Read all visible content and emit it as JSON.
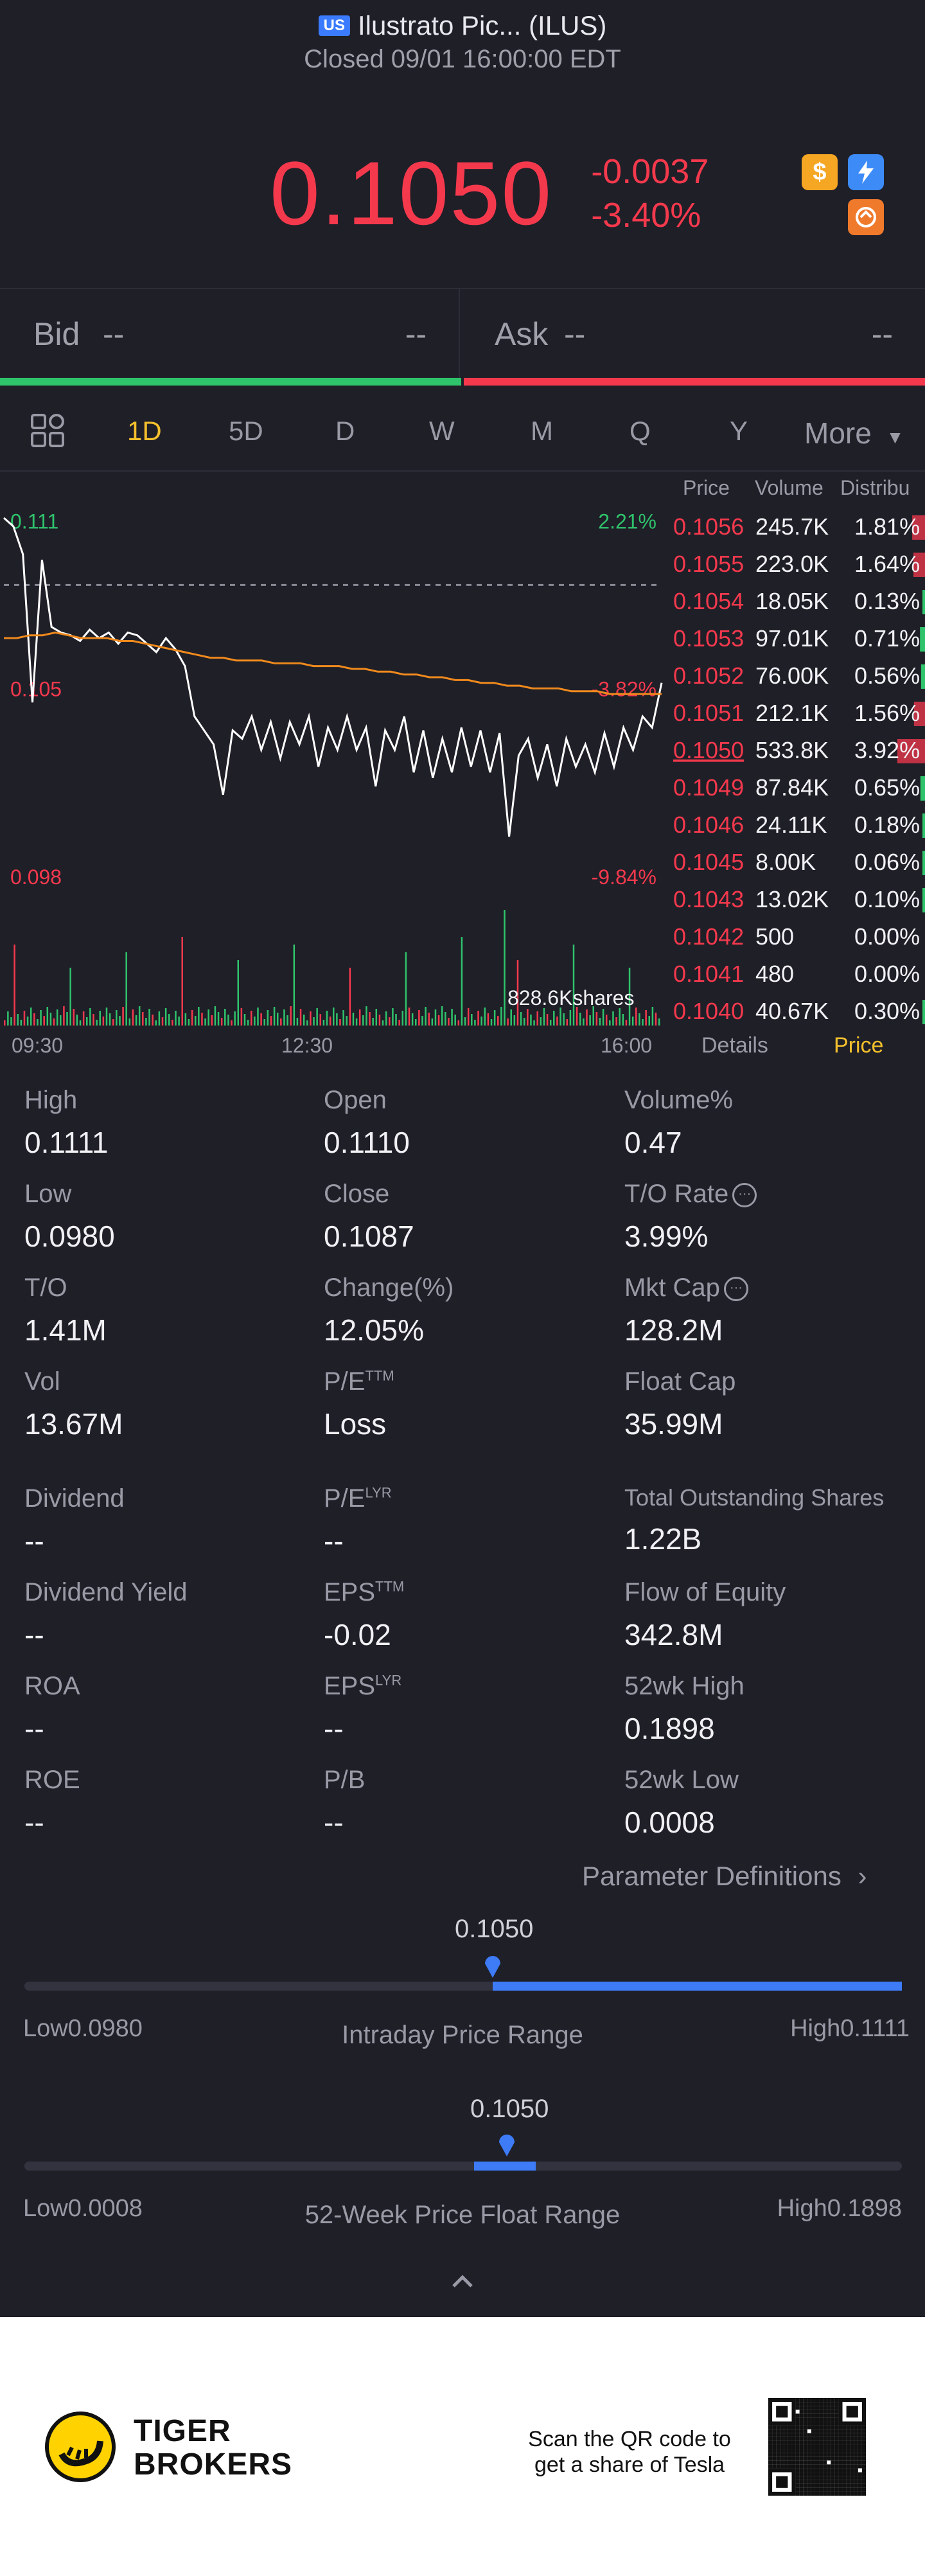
{
  "header": {
    "market_badge": "US",
    "title": "Ilustrato Pic... (ILUS)",
    "status": "Closed 09/01 16:00:00 EDT"
  },
  "quote": {
    "price": "0.1050",
    "change": "-0.0037",
    "change_pct": "-3.40%"
  },
  "icons": [
    "dollar-icon",
    "lightning-icon",
    "swap-icon"
  ],
  "bid_ask": {
    "bid_label": "Bid",
    "bid_value": "--",
    "bid_size": "--",
    "ask_label": "Ask",
    "ask_value": "--",
    "ask_size": "--"
  },
  "tabs": {
    "items": [
      "1D",
      "5D",
      "D",
      "W",
      "M",
      "Q",
      "Y",
      "More"
    ],
    "active": "1D"
  },
  "chart_data": {
    "type": "line",
    "ylim": [
      0.098,
      0.1111
    ],
    "y_labels_left": [
      "0.111",
      "0.105",
      "0.098"
    ],
    "y_labels_right": [
      "2.21%",
      "-3.82%",
      "-9.84%"
    ],
    "x_ticks": [
      "09:30",
      "12:30",
      "16:00"
    ],
    "volume_label": "828.6Kshares",
    "prev_close": 0.1087,
    "series": [
      {
        "name": "price",
        "values": [
          0.1111,
          0.1108,
          0.1098,
          0.1045,
          0.1096,
          0.1072,
          0.107,
          0.1069,
          0.1067,
          0.1071,
          0.1068,
          0.107,
          0.1066,
          0.107,
          0.1069,
          0.1066,
          0.1063,
          0.1068,
          0.1064,
          0.1058,
          0.104,
          0.1035,
          0.103,
          0.1012,
          0.1035,
          0.1032,
          0.104,
          0.1028,
          0.1038,
          0.1025,
          0.1038,
          0.103,
          0.104,
          0.1022,
          0.1036,
          0.1028,
          0.104,
          0.1028,
          0.1036,
          0.1015,
          0.1035,
          0.1028,
          0.104,
          0.102,
          0.1035,
          0.1018,
          0.1032,
          0.102,
          0.1036,
          0.1022,
          0.1035,
          0.102,
          0.1034,
          0.0997,
          0.1026,
          0.1032,
          0.1018,
          0.103,
          0.1015,
          0.1032,
          0.1022,
          0.103,
          0.102,
          0.1034,
          0.1022,
          0.1036,
          0.1028,
          0.104,
          0.1036,
          0.1052
        ]
      },
      {
        "name": "avg",
        "values": [
          0.1068,
          0.1068,
          0.1069,
          0.1069,
          0.107,
          0.1069,
          0.1068,
          0.1068,
          0.1068,
          0.1067,
          0.1067,
          0.1066,
          0.1065,
          0.1064,
          0.1063,
          0.1062,
          0.1061,
          0.1061,
          0.106,
          0.106,
          0.106,
          0.1059,
          0.1059,
          0.1059,
          0.1058,
          0.1058,
          0.1058,
          0.1057,
          0.1057,
          0.1056,
          0.1056,
          0.1055,
          0.1055,
          0.1054,
          0.1054,
          0.1053,
          0.1053,
          0.1052,
          0.1052,
          0.1051,
          0.1051,
          0.105,
          0.105,
          0.105,
          0.1049,
          0.1049,
          0.1049,
          0.1048,
          0.1048,
          0.1048,
          0.1048,
          0.1048
        ]
      }
    ]
  },
  "price_distribution": {
    "headers": [
      "Price",
      "Volume",
      "Distribu"
    ],
    "rows": [
      {
        "price": "0.1056",
        "volume": "245.7K",
        "pct": "1.81%",
        "share": 0.0181
      },
      {
        "price": "0.1055",
        "volume": "223.0K",
        "pct": "1.64%",
        "share": 0.0164
      },
      {
        "price": "0.1054",
        "volume": "18.05K",
        "pct": "0.13%",
        "share": 0.0013
      },
      {
        "price": "0.1053",
        "volume": "97.01K",
        "pct": "0.71%",
        "share": 0.0071
      },
      {
        "price": "0.1052",
        "volume": "76.00K",
        "pct": "0.56%",
        "share": 0.0056
      },
      {
        "price": "0.1051",
        "volume": "212.1K",
        "pct": "1.56%",
        "share": 0.0156
      },
      {
        "price": "0.1050",
        "volume": "533.8K",
        "pct": "3.92%",
        "share": 0.0392
      },
      {
        "price": "0.1049",
        "volume": "87.84K",
        "pct": "0.65%",
        "share": 0.0065
      },
      {
        "price": "0.1046",
        "volume": "24.11K",
        "pct": "0.18%",
        "share": 0.0018
      },
      {
        "price": "0.1045",
        "volume": "8.00K",
        "pct": "0.06%",
        "share": 0.0006
      },
      {
        "price": "0.1043",
        "volume": "13.02K",
        "pct": "0.10%",
        "share": 0.001
      },
      {
        "price": "0.1042",
        "volume": "500",
        "pct": "0.00%",
        "share": 0
      },
      {
        "price": "0.1041",
        "volume": "480",
        "pct": "0.00%",
        "share": 0
      },
      {
        "price": "0.1040",
        "volume": "40.67K",
        "pct": "0.30%",
        "share": 0.003
      }
    ],
    "bottom_tabs": [
      "Details",
      "Price"
    ]
  },
  "stats": {
    "high": {
      "label": "High",
      "value": "0.1111"
    },
    "open": {
      "label": "Open",
      "value": "0.1110"
    },
    "volume_pct": {
      "label": "Volume%",
      "value": "0.47"
    },
    "low": {
      "label": "Low",
      "value": "0.0980"
    },
    "close": {
      "label": "Close",
      "value": "0.1087"
    },
    "to_rate": {
      "label": "T/O Rate",
      "value": "3.99%"
    },
    "to": {
      "label": "T/O",
      "value": "1.41M"
    },
    "change_pct": {
      "label": "Change(%)",
      "value": "12.05%"
    },
    "mkt_cap": {
      "label": "Mkt Cap",
      "value": "128.2M"
    },
    "vol": {
      "label": "Vol",
      "value": "13.67M"
    },
    "pe_ttm": {
      "label": "P/E",
      "sup": "TTM",
      "value": "Loss"
    },
    "float_cap": {
      "label": "Float Cap",
      "value": "35.99M"
    },
    "dividend": {
      "label": "Dividend",
      "value": "--"
    },
    "pe_lyr": {
      "label": "P/E",
      "sup": "LYR",
      "value": "--"
    },
    "total_shares": {
      "label": "Total Outstanding Shares",
      "value": "1.22B"
    },
    "dividend_yield": {
      "label": "Dividend Yield",
      "value": "--"
    },
    "eps_ttm": {
      "label": "EPS",
      "sup": "TTM",
      "value": "-0.02"
    },
    "flow_equity": {
      "label": "Flow of Equity",
      "value": "342.8M"
    },
    "roa": {
      "label": "ROA",
      "value": "--"
    },
    "eps_lyr": {
      "label": "EPS",
      "sup": "LYR",
      "value": "--"
    },
    "wk52_high": {
      "label": "52wk High",
      "value": "0.1898"
    },
    "roe": {
      "label": "ROE",
      "value": "--"
    },
    "pb": {
      "label": "P/B",
      "value": "--"
    },
    "wk52_low": {
      "label": "52wk Low",
      "value": "0.0008"
    }
  },
  "param_definitions": "Parameter Definitions",
  "intraday_range": {
    "title": "Intraday Price Range",
    "current": "0.1050",
    "low_label": "Low",
    "low": "0.0980",
    "high_label": "High",
    "high": "0.1111",
    "position": 0.534
  },
  "week52_range": {
    "title": "52-Week Price Float Range",
    "current": "0.1050",
    "low_label": "Low",
    "low": "0.0008",
    "high_label": "High",
    "high": "0.1898",
    "position": 0.551
  },
  "footer": {
    "brand_line1": "TIGER",
    "brand_line2": "BROKERS",
    "qr_line1": "Scan the QR code to",
    "qr_line2": "get a share of Tesla"
  },
  "colors": {
    "background": "#1f1f28",
    "down": "#f5394d",
    "up": "#2fc36b",
    "accent": "#3d7bf7",
    "active_tab": "#f4c02c",
    "avg_line": "#f08a1c"
  }
}
